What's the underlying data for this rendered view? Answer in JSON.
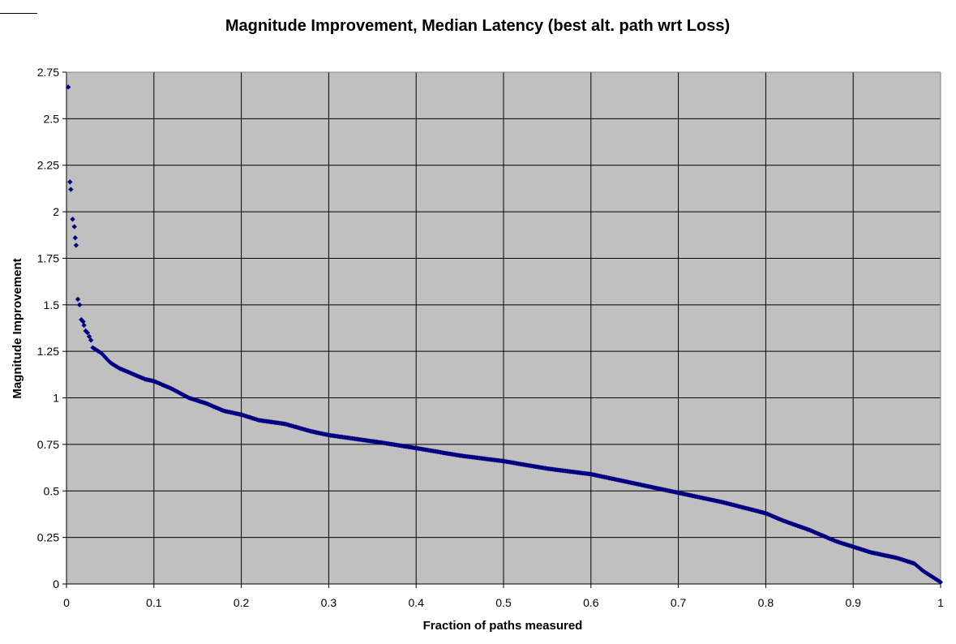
{
  "chart_data": {
    "type": "scatter",
    "title": "Magnitude Improvement, Median Latency (best alt. path wrt Loss)",
    "xlabel": "Fraction of paths measured",
    "ylabel": "Magnitude Improvement",
    "xlim": [
      0,
      1
    ],
    "ylim": [
      0,
      2.75
    ],
    "xticks": [
      "0",
      "0.1",
      "0.2",
      "0.3",
      "0.4",
      "0.5",
      "0.6",
      "0.7",
      "0.8",
      "0.9",
      "1"
    ],
    "yticks": [
      "0",
      "0.25",
      "0.5",
      "0.75",
      "1",
      "1.25",
      "1.5",
      "1.75",
      "2",
      "2.25",
      "2.5",
      "2.75"
    ],
    "grid": true,
    "legend": "none",
    "colors": {
      "plot_background": "#c0c0c0",
      "marker": "#000080",
      "gridline": "#000000"
    },
    "outliers": {
      "x": [
        0.002,
        0.004,
        0.005,
        0.007,
        0.009,
        0.01,
        0.011,
        0.013,
        0.015,
        0.017,
        0.019,
        0.02,
        0.022,
        0.024,
        0.026,
        0.028
      ],
      "y": [
        2.67,
        2.16,
        2.12,
        1.96,
        1.92,
        1.86,
        1.82,
        1.53,
        1.5,
        1.42,
        1.41,
        1.39,
        1.36,
        1.35,
        1.33,
        1.31
      ]
    },
    "curve": {
      "x": [
        0.03,
        0.04,
        0.05,
        0.06,
        0.07,
        0.08,
        0.09,
        0.1,
        0.12,
        0.14,
        0.16,
        0.18,
        0.2,
        0.22,
        0.25,
        0.28,
        0.3,
        0.33,
        0.36,
        0.4,
        0.45,
        0.5,
        0.55,
        0.6,
        0.65,
        0.7,
        0.75,
        0.8,
        0.82,
        0.85,
        0.88,
        0.9,
        0.92,
        0.95,
        0.97,
        0.98,
        0.99,
        1.0
      ],
      "y": [
        1.27,
        1.24,
        1.19,
        1.16,
        1.14,
        1.12,
        1.1,
        1.09,
        1.05,
        1.0,
        0.97,
        0.93,
        0.91,
        0.88,
        0.86,
        0.82,
        0.8,
        0.78,
        0.76,
        0.73,
        0.69,
        0.66,
        0.62,
        0.59,
        0.54,
        0.49,
        0.44,
        0.38,
        0.34,
        0.29,
        0.23,
        0.2,
        0.17,
        0.14,
        0.11,
        0.07,
        0.04,
        0.01
      ]
    }
  }
}
